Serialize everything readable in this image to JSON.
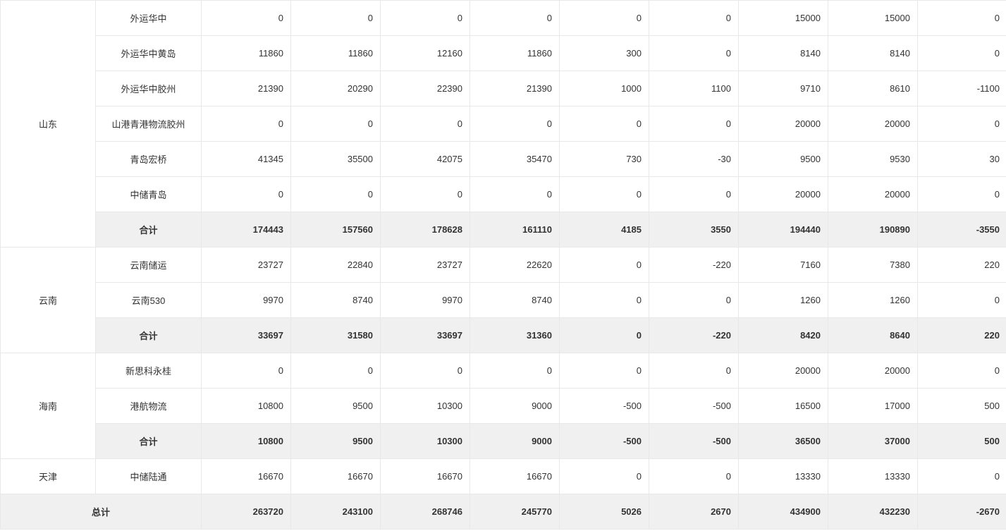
{
  "labels": {
    "subtotal": "合计",
    "grandTotal": "总计"
  },
  "columns": {
    "region_width": 135,
    "name_width": 150,
    "data_width": 127,
    "data_count": 9
  },
  "colors": {
    "border": "#e8e8e8",
    "text": "#333333",
    "subtotal_bg": "#f0f0f0",
    "row_bg": "#ffffff"
  },
  "typography": {
    "font_family": "Microsoft YaHei",
    "font_size": 13,
    "subtotal_weight": 700,
    "normal_weight": 400
  },
  "groups": [
    {
      "region": "山东",
      "rows": [
        {
          "name": "外运华中",
          "values": [
            0,
            0,
            0,
            0,
            0,
            0,
            15000,
            15000,
            0
          ]
        },
        {
          "name": "外运华中黄岛",
          "values": [
            11860,
            11860,
            12160,
            11860,
            300,
            0,
            8140,
            8140,
            0
          ]
        },
        {
          "name": "外运华中胶州",
          "values": [
            21390,
            20290,
            22390,
            21390,
            1000,
            1100,
            9710,
            8610,
            -1100
          ]
        },
        {
          "name": "山港青港物流胶州",
          "values": [
            0,
            0,
            0,
            0,
            0,
            0,
            20000,
            20000,
            0
          ]
        },
        {
          "name": "青岛宏桥",
          "values": [
            41345,
            35500,
            42075,
            35470,
            730,
            -30,
            9500,
            9530,
            30
          ]
        },
        {
          "name": "中储青岛",
          "values": [
            0,
            0,
            0,
            0,
            0,
            0,
            20000,
            20000,
            0
          ]
        }
      ],
      "subtotal": [
        174443,
        157560,
        178628,
        161110,
        4185,
        3550,
        194440,
        190890,
        -3550
      ]
    },
    {
      "region": "云南",
      "rows": [
        {
          "name": "云南储运",
          "values": [
            23727,
            22840,
            23727,
            22620,
            0,
            -220,
            7160,
            7380,
            220
          ]
        },
        {
          "name": "云南530",
          "values": [
            9970,
            8740,
            9970,
            8740,
            0,
            0,
            1260,
            1260,
            0
          ]
        }
      ],
      "subtotal": [
        33697,
        31580,
        33697,
        31360,
        0,
        -220,
        8420,
        8640,
        220
      ]
    },
    {
      "region": "海南",
      "rows": [
        {
          "name": "新思科永桂",
          "values": [
            0,
            0,
            0,
            0,
            0,
            0,
            20000,
            20000,
            0
          ]
        },
        {
          "name": "港航物流",
          "values": [
            10800,
            9500,
            10300,
            9000,
            -500,
            -500,
            16500,
            17000,
            500
          ]
        }
      ],
      "subtotal": [
        10800,
        9500,
        10300,
        9000,
        -500,
        -500,
        36500,
        37000,
        500
      ]
    },
    {
      "region": "天津",
      "rows": [
        {
          "name": "中储陆通",
          "values": [
            16670,
            16670,
            16670,
            16670,
            0,
            0,
            13330,
            13330,
            0
          ]
        }
      ],
      "subtotal": null
    }
  ],
  "grandTotal": [
    263720,
    243100,
    268746,
    245770,
    5026,
    2670,
    434900,
    432230,
    -2670
  ]
}
